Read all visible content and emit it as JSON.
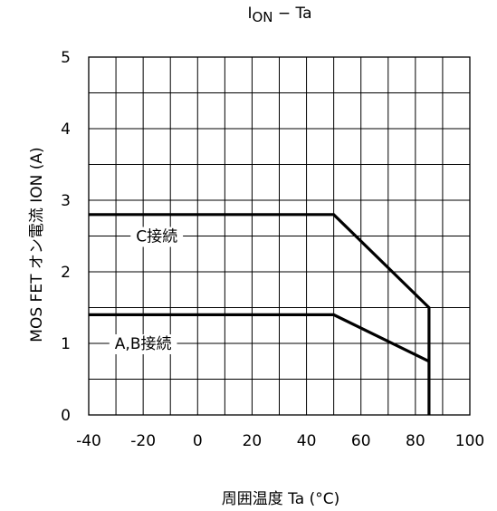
{
  "chart_data": {
    "type": "line",
    "title_main": "I",
    "title_sub": "ON",
    "title_rest": " − Ta",
    "xlabel": "周囲温度  Ta (°C)",
    "ylabel": "MOS FET オン電流  ION (A)",
    "xlim": [
      -40,
      100
    ],
    "ylim": [
      0,
      5
    ],
    "x_ticks": [
      "-40",
      "-20",
      "0",
      "20",
      "40",
      "60",
      "80",
      "100"
    ],
    "y_ticks": [
      "0",
      "1",
      "2",
      "3",
      "4",
      "5"
    ],
    "x_grid_step": 10,
    "y_grid_step": 0.5,
    "grid": true,
    "series": [
      {
        "name": "C接続",
        "label_at": [
          -15,
          2.5
        ],
        "points": [
          [
            -40,
            2.8
          ],
          [
            50,
            2.8
          ],
          [
            85,
            1.5
          ],
          [
            85,
            0
          ]
        ]
      },
      {
        "name": "A,B接続",
        "label_at": [
          -20,
          1.0
        ],
        "points": [
          [
            -40,
            1.4
          ],
          [
            50,
            1.4
          ],
          [
            85,
            0.75
          ]
        ]
      }
    ],
    "line_color": "#000000"
  }
}
